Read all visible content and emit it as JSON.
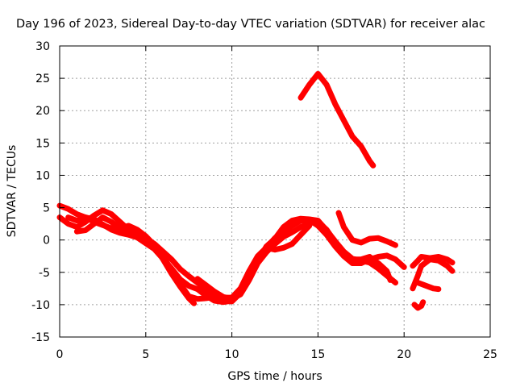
{
  "chart_data": {
    "type": "scatter",
    "title": "Day 196 of 2023, Sidereal Day-to-day VTEC variation (SDTVAR) for receiver alac",
    "xlabel": "GPS time / hours",
    "ylabel": "SDTVAR / TECUs",
    "xlim": [
      0,
      25
    ],
    "ylim": [
      -15,
      30
    ],
    "xticks": [
      0,
      5,
      10,
      15,
      20,
      25
    ],
    "yticks": [
      -15,
      -10,
      -5,
      0,
      5,
      10,
      15,
      20,
      25,
      30
    ],
    "grid": true,
    "marker": "+",
    "color": "#ff0000",
    "series": [
      {
        "name": "track-1",
        "points": [
          [
            0.0,
            5.3
          ],
          [
            0.5,
            4.8
          ],
          [
            1.0,
            4.0
          ],
          [
            1.5,
            3.5
          ],
          [
            2.0,
            2.8
          ],
          [
            2.5,
            2.3
          ],
          [
            3.0,
            1.8
          ],
          [
            3.5,
            1.8
          ],
          [
            4.0,
            1.5
          ],
          [
            4.5,
            1.0
          ],
          [
            5.0,
            0.3
          ],
          [
            5.5,
            -0.6
          ],
          [
            6.0,
            -1.8
          ],
          [
            6.5,
            -3.0
          ],
          [
            7.0,
            -4.5
          ],
          [
            7.5,
            -5.6
          ],
          [
            8.0,
            -6.6
          ],
          [
            8.5,
            -7.6
          ],
          [
            9.0,
            -8.6
          ],
          [
            9.5,
            -9.4
          ],
          [
            10.0,
            -9.5
          ],
          [
            10.5,
            -8.2
          ],
          [
            11.0,
            -5.8
          ],
          [
            11.5,
            -3.2
          ],
          [
            12.0,
            -1.2
          ],
          [
            12.5,
            0.3
          ],
          [
            13.0,
            1.2
          ],
          [
            13.5,
            2.2
          ],
          [
            14.0,
            3.0
          ],
          [
            14.5,
            3.1
          ],
          [
            15.0,
            2.2
          ],
          [
            15.5,
            0.8
          ],
          [
            16.0,
            -1.0
          ],
          [
            16.5,
            -2.5
          ],
          [
            17.0,
            -3.6
          ],
          [
            17.5,
            -3.6
          ],
          [
            18.0,
            -3.0
          ],
          [
            18.5,
            -2.6
          ],
          [
            19.0,
            -2.4
          ],
          [
            19.5,
            -3.0
          ],
          [
            20.0,
            -4.2
          ]
        ]
      },
      {
        "name": "track-2",
        "points": [
          [
            0.0,
            3.5
          ],
          [
            0.5,
            2.5
          ],
          [
            1.0,
            2.0
          ],
          [
            1.5,
            2.8
          ],
          [
            2.0,
            3.8
          ],
          [
            2.5,
            4.6
          ],
          [
            3.0,
            4.0
          ],
          [
            3.5,
            2.8
          ],
          [
            4.0,
            1.6
          ],
          [
            4.5,
            1.2
          ],
          [
            5.0,
            0.4
          ],
          [
            5.5,
            -0.8
          ],
          [
            6.0,
            -2.6
          ],
          [
            6.5,
            -4.6
          ],
          [
            7.0,
            -6.8
          ],
          [
            7.5,
            -8.7
          ],
          [
            8.0,
            -9.1
          ],
          [
            8.5,
            -9.0
          ],
          [
            9.0,
            -8.8
          ],
          [
            9.5,
            -8.9
          ],
          [
            10.0,
            -8.9
          ],
          [
            10.5,
            -7.5
          ],
          [
            11.0,
            -4.8
          ],
          [
            11.5,
            -2.5
          ],
          [
            12.0,
            -1.2
          ],
          [
            12.5,
            -1.5
          ],
          [
            13.0,
            -1.2
          ],
          [
            13.5,
            -0.6
          ],
          [
            14.0,
            0.8
          ],
          [
            14.5,
            2.2
          ]
        ]
      },
      {
        "name": "track-3",
        "points": [
          [
            0.5,
            3.5
          ],
          [
            1.0,
            3.0
          ],
          [
            1.5,
            3.5
          ],
          [
            2.0,
            3.2
          ],
          [
            2.5,
            2.4
          ],
          [
            3.0,
            1.6
          ],
          [
            3.5,
            1.1
          ],
          [
            4.0,
            0.8
          ],
          [
            4.5,
            0.4
          ],
          [
            5.0,
            -0.5
          ],
          [
            5.5,
            -1.4
          ],
          [
            6.0,
            -2.9
          ],
          [
            6.5,
            -4.4
          ],
          [
            7.0,
            -6.1
          ],
          [
            7.5,
            -7.1
          ],
          [
            8.0,
            -7.6
          ],
          [
            8.5,
            -8.6
          ],
          [
            9.0,
            -9.4
          ],
          [
            9.5,
            -9.6
          ],
          [
            10.0,
            -9.4
          ],
          [
            10.5,
            -8.1
          ],
          [
            11.0,
            -6.0
          ],
          [
            11.5,
            -3.4
          ],
          [
            12.0,
            -1.0
          ],
          [
            12.5,
            0.2
          ],
          [
            13.0,
            2.0
          ],
          [
            13.5,
            3.0
          ],
          [
            14.0,
            3.3
          ],
          [
            14.5,
            3.2
          ],
          [
            15.0,
            3.0
          ],
          [
            15.5,
            1.5
          ],
          [
            16.0,
            -0.2
          ],
          [
            16.5,
            -1.8
          ],
          [
            17.0,
            -2.9
          ],
          [
            17.5,
            -3.2
          ],
          [
            18.0,
            -3.5
          ],
          [
            18.5,
            -4.4
          ],
          [
            19.0,
            -5.5
          ],
          [
            19.5,
            -6.6
          ]
        ]
      },
      {
        "name": "track-4",
        "points": [
          [
            1.0,
            1.3
          ],
          [
            1.5,
            1.5
          ],
          [
            2.0,
            2.5
          ],
          [
            2.5,
            3.5
          ],
          [
            3.0,
            2.8
          ],
          [
            3.5,
            1.8
          ],
          [
            4.0,
            2.2
          ],
          [
            4.5,
            1.6
          ],
          [
            5.0,
            0.6
          ],
          [
            5.5,
            -0.8
          ],
          [
            6.0,
            -3.0
          ],
          [
            6.5,
            -5.2
          ],
          [
            7.0,
            -7.2
          ],
          [
            7.5,
            -9.0
          ],
          [
            7.8,
            -9.8
          ]
        ]
      },
      {
        "name": "track-5",
        "points": [
          [
            8.0,
            -6.0
          ],
          [
            8.5,
            -7.0
          ],
          [
            9.0,
            -8.0
          ],
          [
            9.5,
            -8.8
          ],
          [
            10.0,
            -9.1
          ],
          [
            10.5,
            -8.4
          ],
          [
            11.0,
            -6.2
          ],
          [
            11.5,
            -3.6
          ],
          [
            12.0,
            -1.9
          ],
          [
            12.5,
            -0.6
          ],
          [
            13.0,
            0.5
          ],
          [
            13.5,
            1.2
          ],
          [
            14.0,
            2.0
          ],
          [
            14.5,
            2.6
          ],
          [
            15.0,
            2.8
          ],
          [
            15.5,
            1.6
          ],
          [
            16.0,
            -0.4
          ],
          [
            16.5,
            -2.0
          ],
          [
            17.0,
            -3.0
          ],
          [
            17.5,
            -3.0
          ],
          [
            18.0,
            -2.6
          ],
          [
            18.5,
            -3.6
          ],
          [
            19.0,
            -4.8
          ],
          [
            19.2,
            -6.2
          ]
        ]
      },
      {
        "name": "track-6",
        "points": [
          [
            14.0,
            22.0
          ],
          [
            14.5,
            24.0
          ],
          [
            15.0,
            25.7
          ],
          [
            15.5,
            24.0
          ],
          [
            16.0,
            21.0
          ],
          [
            16.5,
            18.5
          ],
          [
            17.0,
            16.0
          ],
          [
            17.5,
            14.5
          ],
          [
            18.0,
            12.2
          ],
          [
            18.2,
            11.5
          ]
        ]
      },
      {
        "name": "track-7",
        "points": [
          [
            16.2,
            4.2
          ],
          [
            16.5,
            2.0
          ],
          [
            17.0,
            0.0
          ],
          [
            17.5,
            -0.4
          ],
          [
            18.0,
            0.2
          ],
          [
            18.5,
            0.3
          ],
          [
            19.0,
            -0.2
          ],
          [
            19.5,
            -0.8
          ]
        ]
      },
      {
        "name": "track-8",
        "points": [
          [
            20.5,
            -4.0
          ],
          [
            20.8,
            -3.2
          ],
          [
            21.0,
            -2.6
          ],
          [
            21.5,
            -2.8
          ],
          [
            22.0,
            -2.6
          ],
          [
            22.5,
            -3.0
          ],
          [
            22.8,
            -3.5
          ]
        ]
      },
      {
        "name": "track-9",
        "points": [
          [
            20.5,
            -7.5
          ],
          [
            20.8,
            -5.5
          ],
          [
            21.0,
            -4.0
          ],
          [
            21.5,
            -3.0
          ],
          [
            22.0,
            -3.2
          ],
          [
            22.5,
            -4.0
          ],
          [
            22.8,
            -4.8
          ]
        ]
      },
      {
        "name": "track-10",
        "points": [
          [
            20.8,
            -6.6
          ],
          [
            21.2,
            -7.0
          ],
          [
            21.7,
            -7.5
          ],
          [
            22.0,
            -7.6
          ]
        ]
      },
      {
        "name": "track-11",
        "points": [
          [
            20.6,
            -10.0
          ],
          [
            20.8,
            -10.5
          ],
          [
            21.0,
            -10.2
          ],
          [
            21.1,
            -9.6
          ]
        ]
      }
    ]
  }
}
